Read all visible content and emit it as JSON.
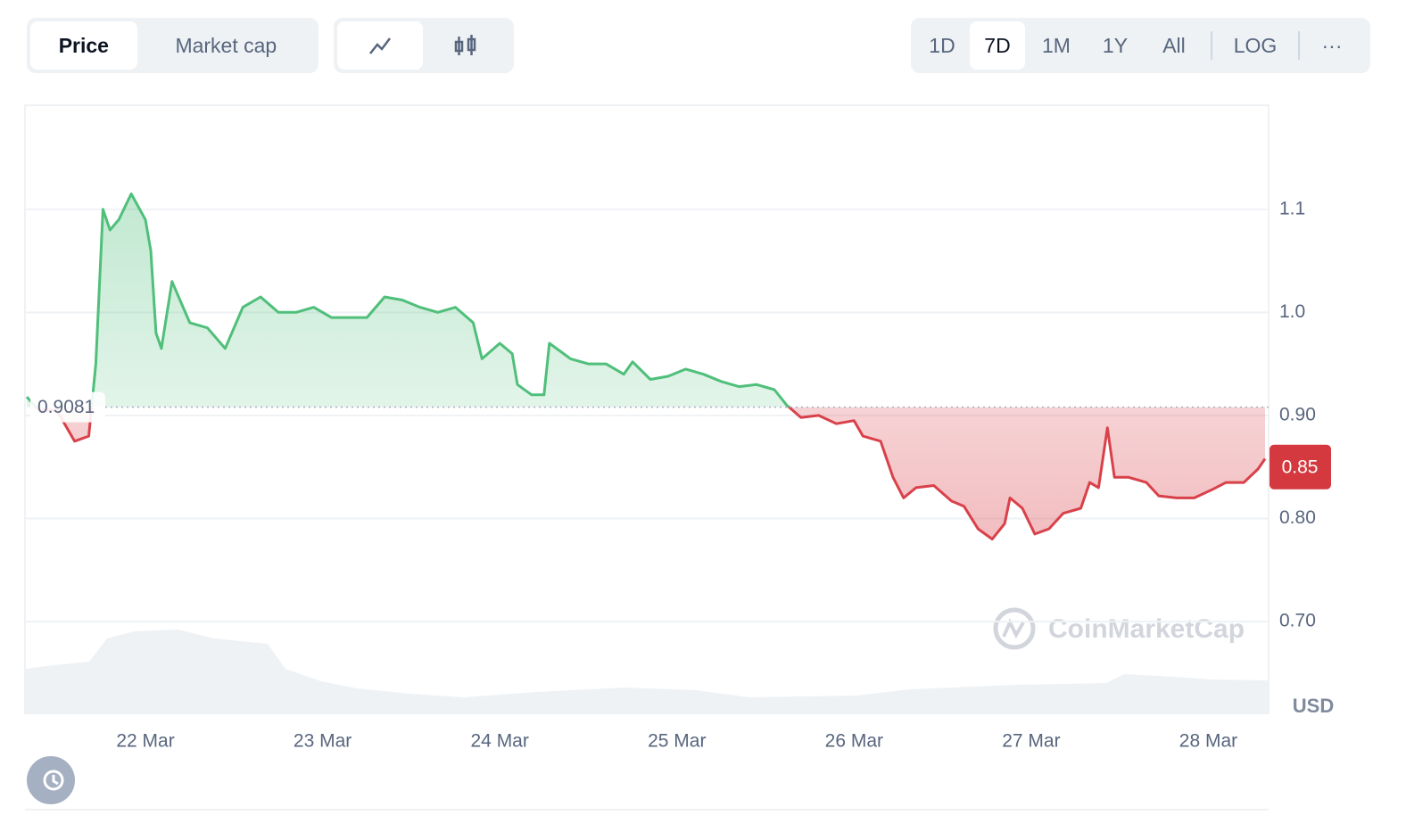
{
  "toolbar": {
    "metric_tabs": [
      "Price",
      "Market cap"
    ],
    "ranges": [
      "1D",
      "7D",
      "1M",
      "1Y",
      "All"
    ],
    "log": "LOG",
    "more": "···"
  },
  "watermark": "CoinMarketCap",
  "chart_data": {
    "type": "line",
    "x": [
      21.33,
      21.4,
      21.5,
      21.6,
      21.68,
      21.72,
      21.76,
      21.8,
      21.85,
      21.92,
      22.0,
      22.03,
      22.06,
      22.09,
      22.15,
      22.25,
      22.35,
      22.45,
      22.55,
      22.65,
      22.75,
      22.85,
      22.95,
      23.05,
      23.15,
      23.25,
      23.35,
      23.45,
      23.55,
      23.65,
      23.75,
      23.85,
      23.9,
      24.0,
      24.07,
      24.1,
      24.18,
      24.25,
      24.28,
      24.4,
      24.5,
      24.6,
      24.7,
      24.75,
      24.85,
      24.95,
      25.05,
      25.15,
      25.25,
      25.35,
      25.45,
      25.55,
      25.62,
      25.7,
      25.8,
      25.9,
      26.0,
      26.05,
      26.15,
      26.22,
      26.28,
      26.35,
      26.45,
      26.55,
      26.62,
      26.7,
      26.78,
      26.85,
      26.88,
      26.95,
      27.02,
      27.1,
      27.18,
      27.28,
      27.33,
      27.38,
      27.43,
      27.47,
      27.55,
      27.65,
      27.72,
      27.82,
      27.92,
      28.02,
      28.1,
      28.2,
      28.28,
      28.32
    ],
    "series": [
      {
        "name": "Price",
        "color_up": "#4fbf7a",
        "color_down": "#d9414a",
        "values": [
          0.918,
          0.905,
          0.905,
          0.875,
          0.88,
          0.95,
          1.1,
          1.08,
          1.09,
          1.115,
          1.09,
          1.06,
          0.98,
          0.965,
          1.03,
          0.99,
          0.985,
          0.965,
          1.005,
          1.015,
          1.0,
          1.0,
          1.005,
          0.995,
          0.995,
          0.995,
          1.015,
          1.012,
          1.005,
          1.0,
          1.005,
          0.99,
          0.955,
          0.97,
          0.96,
          0.93,
          0.92,
          0.92,
          0.97,
          0.955,
          0.95,
          0.95,
          0.94,
          0.952,
          0.935,
          0.938,
          0.945,
          0.94,
          0.933,
          0.928,
          0.93,
          0.925,
          0.91,
          0.898,
          0.9,
          0.892,
          0.895,
          0.88,
          0.875,
          0.84,
          0.82,
          0.83,
          0.832,
          0.817,
          0.812,
          0.79,
          0.78,
          0.795,
          0.82,
          0.81,
          0.785,
          0.79,
          0.805,
          0.81,
          0.835,
          0.83,
          0.888,
          0.84,
          0.84,
          0.835,
          0.822,
          0.82,
          0.82,
          0.828,
          0.835,
          0.835,
          0.848,
          0.858
        ]
      }
    ],
    "baseline": 0.9081,
    "current_price": 0.85,
    "current_color": "#d3393f",
    "xlim": [
      21.32,
      28.34
    ],
    "xticks": [
      {
        "value": 22,
        "label": "22 Mar"
      },
      {
        "value": 23,
        "label": "23 Mar"
      },
      {
        "value": 24,
        "label": "24 Mar"
      },
      {
        "value": 25,
        "label": "25 Mar"
      },
      {
        "value": 26,
        "label": "26 Mar"
      },
      {
        "value": 27,
        "label": "27 Mar"
      },
      {
        "value": 28,
        "label": "28 Mar"
      }
    ],
    "ylim": [
      0.611,
      1.201
    ],
    "yticks": [
      {
        "value": 0.7,
        "label": "0.70"
      },
      {
        "value": 0.8,
        "label": "0.80"
      },
      {
        "value": 0.9,
        "label": "0.90"
      },
      {
        "value": 1,
        "label": "1.0"
      },
      1.1
    ],
    "y_unit": "USD",
    "grid": true
  }
}
